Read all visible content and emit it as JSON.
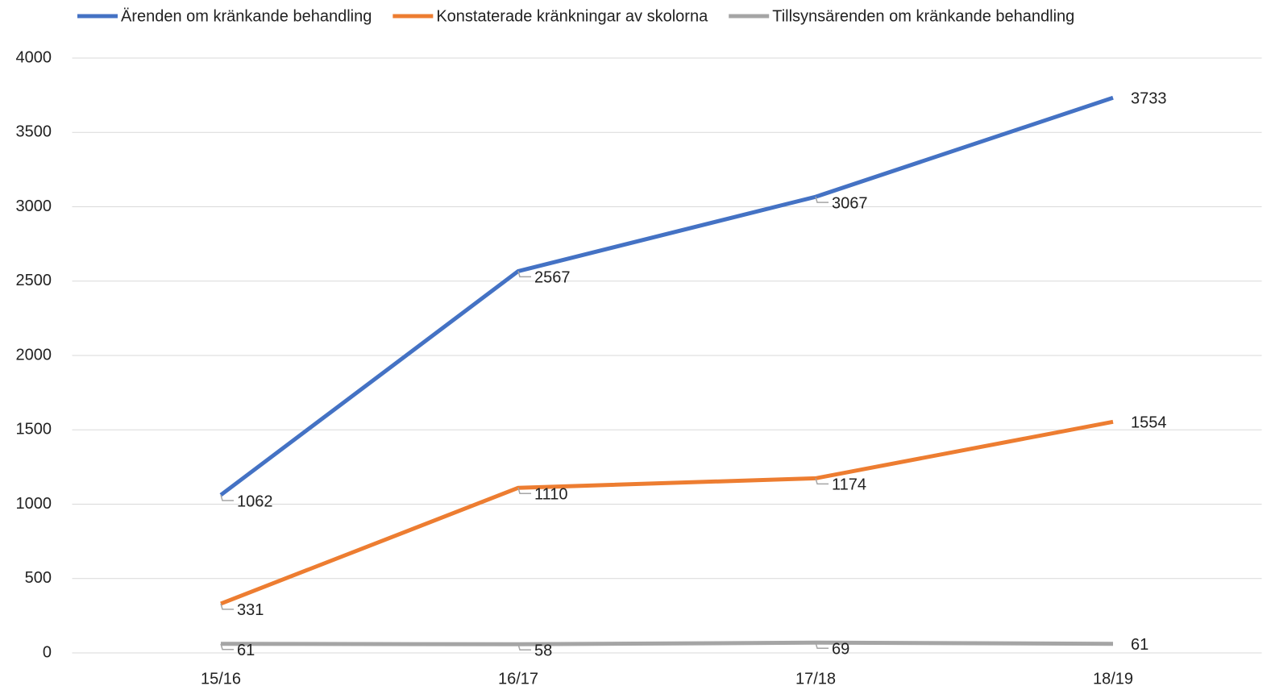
{
  "chart_data": {
    "type": "line",
    "categories": [
      "15/16",
      "16/17",
      "17/18",
      "18/19"
    ],
    "series": [
      {
        "name": "Ärenden om kränkande behandling",
        "color": "#4472c4",
        "values": [
          1062,
          2567,
          3067,
          3733
        ]
      },
      {
        "name": "Konstaterade kränkningar av skolorna",
        "color": "#ed7d31",
        "values": [
          331,
          1110,
          1174,
          1554
        ]
      },
      {
        "name": "Tillsynsärenden om kränkande behandling",
        "color": "#a5a5a5",
        "values": [
          61,
          58,
          69,
          61
        ]
      }
    ],
    "ylim": [
      0,
      4000
    ],
    "yticks": [
      0,
      500,
      1000,
      1500,
      2000,
      2500,
      3000,
      3500,
      4000
    ],
    "grid": true,
    "legend": "top"
  }
}
